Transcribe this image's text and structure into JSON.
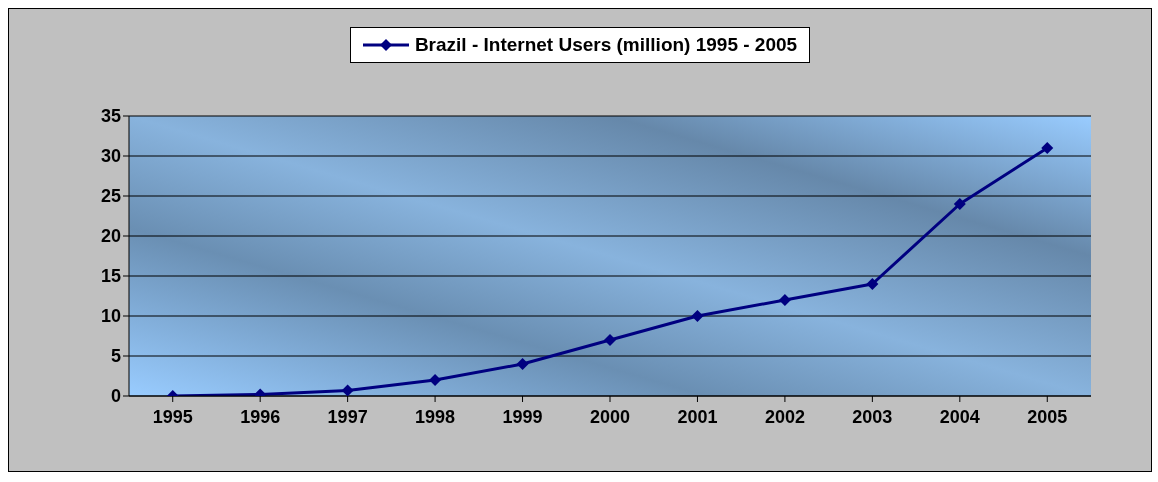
{
  "chart_data": {
    "type": "line",
    "categories": [
      "1995",
      "1996",
      "1997",
      "1998",
      "1999",
      "2000",
      "2001",
      "2002",
      "2003",
      "2004",
      "2005"
    ],
    "series": [
      {
        "name": "Brazil - Internet Users (million) 1995 - 2005",
        "color": "#000080",
        "values": [
          0,
          0.2,
          0.7,
          2,
          4,
          7,
          10,
          12,
          14,
          24,
          31
        ]
      }
    ],
    "ylim": [
      0,
      35
    ],
    "yticks": [
      0,
      5,
      10,
      15,
      20,
      25,
      30,
      35
    ],
    "grid": "y",
    "legend": "top",
    "marker": "diamond",
    "line_style": "solid"
  }
}
